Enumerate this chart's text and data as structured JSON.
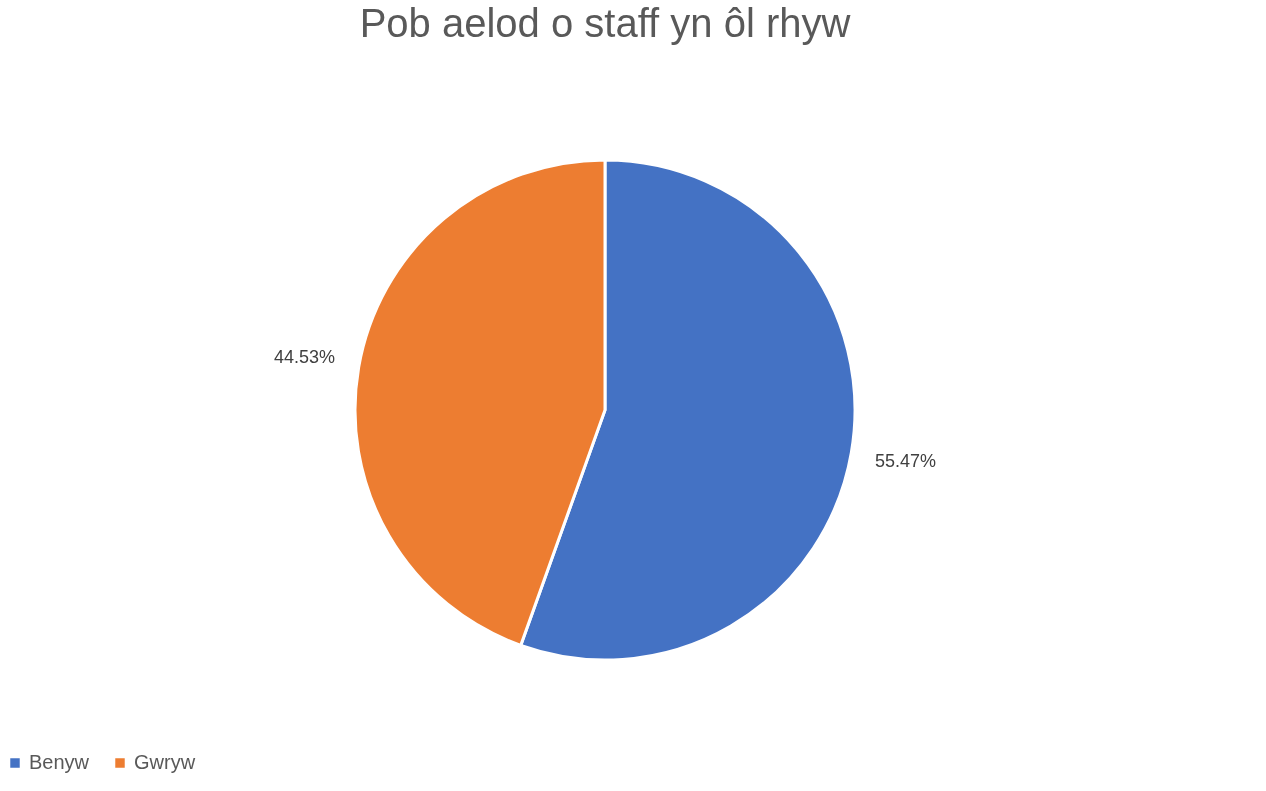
{
  "chart_data": {
    "type": "pie",
    "title": "Pob aelod o staff yn ôl rhyw",
    "categories": [
      "Benyw",
      "Gwryw"
    ],
    "values": [
      55.47,
      44.53
    ],
    "colors": [
      "#4472c4",
      "#ed7d31"
    ],
    "value_labels": [
      "55.47%",
      "44.53%"
    ],
    "legend": "bottom"
  }
}
